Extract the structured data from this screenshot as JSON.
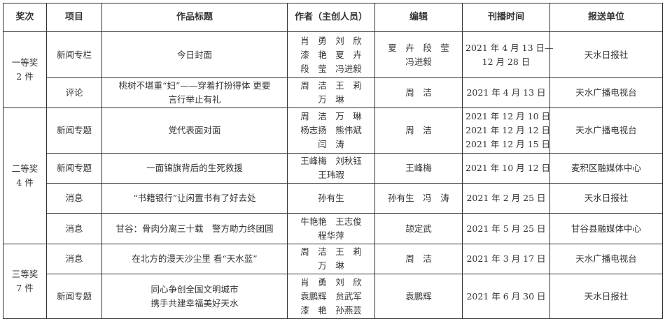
{
  "headers": [
    "奖次",
    "项目",
    "作品标题",
    "作者（主创人员）",
    "编辑",
    "刊播时间",
    "报送单位"
  ],
  "groups": [
    {
      "award": [
        "一等奖",
        "2 件"
      ],
      "rows": [
        {
          "category": "新闻专栏",
          "title": [
            "今日封面"
          ],
          "authors": [
            "肖　勇　刘　欣",
            "漆　艳　夏　卉",
            "段　莹　冯进毅"
          ],
          "editor": [
            "夏　卉　段　莹",
            "冯进毅"
          ],
          "date": [
            "2021 年 4 月 13 日—",
            "12 月 28 日"
          ],
          "unit": "天水日报社"
        },
        {
          "category": "评论",
          "title": [
            "桃树不堪重“妇”——穿着打扮得体 更要",
            "言行举止有礼"
          ],
          "authors": [
            "周　洁　王　莉",
            "万　琳"
          ],
          "editor": [
            "周　洁"
          ],
          "date": [
            "2021 年 4 月 13 日"
          ],
          "unit": "天水广播电视台"
        }
      ]
    },
    {
      "award": [
        "二等奖",
        "4 件"
      ],
      "rows": [
        {
          "category": "新闻专题",
          "title": [
            "党代表面对面"
          ],
          "authors": [
            "周　洁　万　琳",
            "杨志扬　熊伟斌",
            "闫　涛"
          ],
          "editor": [
            "周　洁"
          ],
          "date": [
            "2021 年 12 月 10 日",
            "2021 年 12 月 12 日",
            "2021 年 12 月 15 日"
          ],
          "unit": "天水广播电视台"
        },
        {
          "category": "新闻专题",
          "title": [
            "一面锦旗背后的生死救援"
          ],
          "authors": [
            "王峰梅　刘秋钰",
            "王玮瑕"
          ],
          "editor": [
            "王峰梅"
          ],
          "date": [
            "2021 年 10 月 12 日"
          ],
          "unit": "麦积区融媒体中心"
        },
        {
          "category": "消息",
          "title": [
            "“书籍银行”让闲置书有了好去处"
          ],
          "authors": [
            "孙有生"
          ],
          "editor": [
            "孙有生　冯　涛"
          ],
          "date": [
            "2021 年 2 月 25 日"
          ],
          "unit": "天水日报社"
        },
        {
          "category": "消息",
          "title": [
            "甘谷：骨肉分离三十载　警方助力终团圆"
          ],
          "authors": [
            "牛艳艳　王志俊",
            "程华萍"
          ],
          "editor": [
            "颉定武"
          ],
          "date": [
            "2021 年 5 月 25 日"
          ],
          "unit": "甘谷县融媒体中心"
        }
      ]
    },
    {
      "award": [
        "三等奖",
        "7 件"
      ],
      "rows": [
        {
          "category": "消息",
          "title": [
            "在北方的漫天沙尘里 看“天水蓝”"
          ],
          "authors": [
            "周　洁　王　莉",
            "万　琳"
          ],
          "editor": [
            "周　洁"
          ],
          "date": [
            "2021 年 3 月 17 日"
          ],
          "unit": "天水广播电视台"
        },
        {
          "category": "新闻专题",
          "title": [
            "同心争创全国文明城市",
            "携手共建幸福美好天水"
          ],
          "authors": [
            "肖　勇　刘　欣",
            "袁鹏辉　贠武军",
            "漆　艳　孙燕芸"
          ],
          "editor": [
            "袁鹏辉"
          ],
          "date": [
            "2021 年 6 月 30 日"
          ],
          "unit": "天水日报社"
        }
      ]
    }
  ]
}
